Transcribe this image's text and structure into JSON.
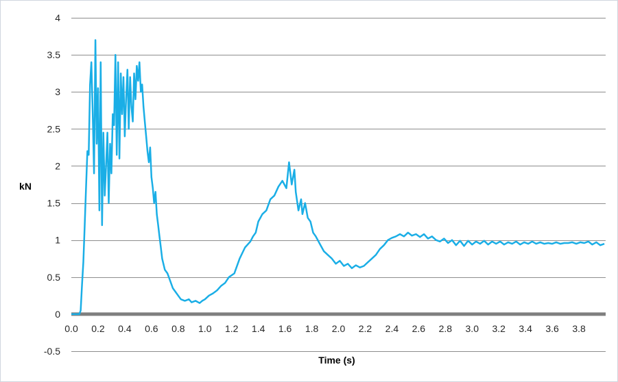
{
  "chart_data": {
    "type": "line",
    "title": "",
    "xlabel": "Time (s)",
    "ylabel": "kN",
    "xlim": [
      0.0,
      4.0
    ],
    "ylim": [
      -0.5,
      4.0
    ],
    "x_ticks": [
      0.0,
      0.2,
      0.4,
      0.6,
      0.8,
      1.0,
      1.2,
      1.4,
      1.6,
      1.8,
      2.0,
      2.2,
      2.4,
      2.6,
      2.8,
      3.0,
      3.2,
      3.4,
      3.6,
      3.8
    ],
    "x_tick_labels": [
      "0.0",
      "0.2",
      "0.4",
      "0.6",
      "0.8",
      "1.0",
      "1.2",
      "1.4",
      "1.6",
      "1.8",
      "2.0",
      "2.2",
      "2.4",
      "2.6",
      "2.8",
      "3.0",
      "3.2",
      "3.4",
      "3.6",
      "3.8"
    ],
    "y_ticks": [
      -0.5,
      0,
      0.5,
      1,
      1.5,
      2,
      2.5,
      3,
      3.5,
      4
    ],
    "y_tick_labels": [
      "-0.5",
      "0",
      "0.5",
      "1",
      "1.5",
      "2",
      "2.5",
      "3",
      "3.5",
      "4"
    ],
    "grid": "horizontal",
    "legend": "none",
    "colors": {
      "series": "#1aaee6",
      "grid": "#8c8c8c",
      "zero_line": "#7f7f7f"
    },
    "series": [
      {
        "name": "",
        "x": [
          0.0,
          0.06,
          0.07,
          0.08,
          0.09,
          0.1,
          0.11,
          0.12,
          0.13,
          0.14,
          0.15,
          0.16,
          0.17,
          0.18,
          0.19,
          0.2,
          0.21,
          0.22,
          0.23,
          0.24,
          0.25,
          0.26,
          0.27,
          0.28,
          0.29,
          0.3,
          0.31,
          0.32,
          0.33,
          0.34,
          0.35,
          0.36,
          0.37,
          0.38,
          0.39,
          0.4,
          0.41,
          0.42,
          0.43,
          0.44,
          0.45,
          0.46,
          0.47,
          0.48,
          0.49,
          0.5,
          0.51,
          0.52,
          0.53,
          0.54,
          0.55,
          0.56,
          0.57,
          0.58,
          0.59,
          0.6,
          0.61,
          0.62,
          0.63,
          0.64,
          0.65,
          0.66,
          0.67,
          0.68,
          0.7,
          0.72,
          0.74,
          0.76,
          0.78,
          0.8,
          0.82,
          0.85,
          0.88,
          0.9,
          0.93,
          0.96,
          0.98,
          1.0,
          1.03,
          1.06,
          1.09,
          1.12,
          1.15,
          1.18,
          1.22,
          1.26,
          1.3,
          1.34,
          1.36,
          1.38,
          1.4,
          1.43,
          1.46,
          1.49,
          1.52,
          1.55,
          1.58,
          1.61,
          1.63,
          1.65,
          1.67,
          1.68,
          1.7,
          1.72,
          1.73,
          1.75,
          1.77,
          1.79,
          1.81,
          1.83,
          1.86,
          1.89,
          1.92,
          1.95,
          1.98,
          2.01,
          2.04,
          2.07,
          2.1,
          2.13,
          2.16,
          2.19,
          2.22,
          2.25,
          2.28,
          2.31,
          2.34,
          2.37,
          2.4,
          2.43,
          2.46,
          2.49,
          2.52,
          2.55,
          2.58,
          2.61,
          2.64,
          2.67,
          2.7,
          2.73,
          2.76,
          2.79,
          2.82,
          2.85,
          2.88,
          2.91,
          2.94,
          2.97,
          3.0,
          3.03,
          3.06,
          3.09,
          3.12,
          3.15,
          3.18,
          3.21,
          3.24,
          3.27,
          3.3,
          3.33,
          3.36,
          3.39,
          3.42,
          3.45,
          3.48,
          3.51,
          3.54,
          3.57,
          3.6,
          3.63,
          3.66,
          3.69,
          3.72,
          3.75,
          3.78,
          3.81,
          3.84,
          3.87,
          3.9,
          3.93,
          3.96,
          3.99
        ],
        "y": [
          0.0,
          0.0,
          0.05,
          0.4,
          0.7,
          1.2,
          1.7,
          2.2,
          2.15,
          3.1,
          3.4,
          2.7,
          1.9,
          3.7,
          2.3,
          3.05,
          1.4,
          3.4,
          1.2,
          2.45,
          1.6,
          2.0,
          2.45,
          1.5,
          2.3,
          1.9,
          2.7,
          2.55,
          3.5,
          2.15,
          3.4,
          2.1,
          3.25,
          2.7,
          3.2,
          2.4,
          2.9,
          3.3,
          2.5,
          3.2,
          2.8,
          2.6,
          3.25,
          2.9,
          3.35,
          3.15,
          3.4,
          3.0,
          3.1,
          2.8,
          2.6,
          2.4,
          2.2,
          2.05,
          2.25,
          1.85,
          1.7,
          1.5,
          1.65,
          1.35,
          1.2,
          1.05,
          0.9,
          0.75,
          0.6,
          0.55,
          0.45,
          0.35,
          0.3,
          0.25,
          0.2,
          0.18,
          0.2,
          0.16,
          0.18,
          0.15,
          0.18,
          0.2,
          0.25,
          0.28,
          0.32,
          0.38,
          0.42,
          0.5,
          0.55,
          0.75,
          0.9,
          0.98,
          1.05,
          1.1,
          1.25,
          1.35,
          1.4,
          1.55,
          1.6,
          1.72,
          1.8,
          1.7,
          2.05,
          1.75,
          1.95,
          1.65,
          1.4,
          1.55,
          1.35,
          1.5,
          1.3,
          1.25,
          1.1,
          1.05,
          0.95,
          0.85,
          0.8,
          0.75,
          0.68,
          0.72,
          0.65,
          0.68,
          0.62,
          0.66,
          0.63,
          0.65,
          0.7,
          0.75,
          0.8,
          0.88,
          0.93,
          1.0,
          1.03,
          1.05,
          1.08,
          1.05,
          1.1,
          1.06,
          1.08,
          1.04,
          1.08,
          1.02,
          1.05,
          1.0,
          0.98,
          1.02,
          0.96,
          1.0,
          0.93,
          0.99,
          0.92,
          0.99,
          0.94,
          0.98,
          0.95,
          0.99,
          0.94,
          0.98,
          0.95,
          0.98,
          0.94,
          0.97,
          0.95,
          0.98,
          0.94,
          0.97,
          0.95,
          0.98,
          0.95,
          0.97,
          0.95,
          0.96,
          0.95,
          0.97,
          0.95,
          0.96,
          0.96,
          0.97,
          0.95,
          0.97,
          0.96,
          0.98,
          0.94,
          0.97,
          0.93,
          0.95
        ]
      }
    ]
  }
}
